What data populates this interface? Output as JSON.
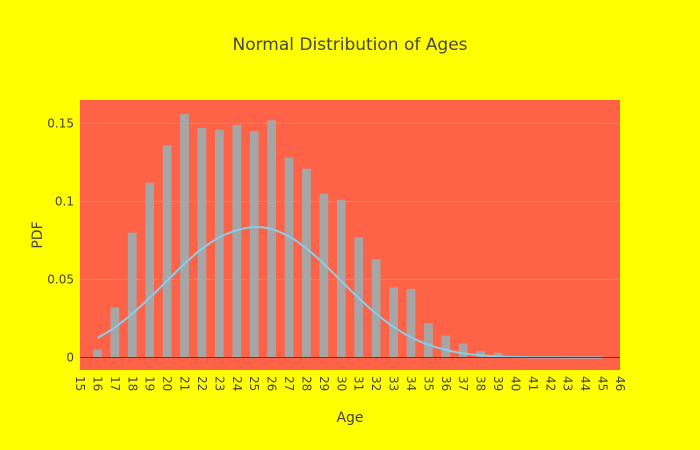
{
  "chart_data": {
    "type": "bar",
    "title": "Normal Distribution of Ages",
    "xlabel": "Age",
    "ylabel": "PDF",
    "xlim": [
      15,
      46
    ],
    "ylim": [
      -0.008,
      0.165
    ],
    "x_ticks": [
      15,
      16,
      17,
      18,
      19,
      20,
      21,
      22,
      23,
      24,
      25,
      26,
      27,
      28,
      29,
      30,
      31,
      32,
      33,
      34,
      35,
      36,
      37,
      38,
      39,
      40,
      41,
      42,
      43,
      44,
      45,
      46
    ],
    "y_ticks": [
      0,
      0.05,
      0.1,
      0.15
    ],
    "y_tick_labels": [
      "0",
      "0.05",
      "0.1",
      "0.15"
    ],
    "grid": true,
    "series": [
      {
        "type": "bar",
        "x": [
          16,
          17,
          18,
          19,
          20,
          21,
          22,
          23,
          24,
          25,
          26,
          27,
          28,
          29,
          30,
          31,
          32,
          33,
          34,
          35,
          36,
          37,
          38,
          39,
          40,
          41,
          42,
          43,
          44,
          45
        ],
        "values": [
          0.005,
          0.032,
          0.08,
          0.112,
          0.136,
          0.156,
          0.147,
          0.146,
          0.149,
          0.145,
          0.152,
          0.128,
          0.121,
          0.105,
          0.101,
          0.077,
          0.063,
          0.045,
          0.044,
          0.022,
          0.014,
          0.009,
          0.004,
          0.003,
          0.001,
          0.0005,
          0.0003,
          0.0002,
          0.0001,
          0.0001
        ],
        "color": "#a6a6a6"
      },
      {
        "type": "line",
        "x": [
          16,
          17,
          18,
          19,
          20,
          21,
          22,
          23,
          24,
          25,
          26,
          27,
          28,
          29,
          30,
          31,
          32,
          33,
          34,
          35,
          36,
          37,
          38,
          39,
          40,
          41,
          42,
          43,
          44,
          45
        ],
        "values": [
          0.0124,
          0.0193,
          0.0281,
          0.0383,
          0.0492,
          0.0601,
          0.0697,
          0.077,
          0.0815,
          0.0836,
          0.0823,
          0.0775,
          0.0699,
          0.06,
          0.049,
          0.0381,
          0.0281,
          0.0196,
          0.013,
          0.0082,
          0.0049,
          0.0027,
          0.0014,
          0.0007,
          0.0003,
          0.0001,
          0.0001,
          0.0,
          0.0,
          0.0
        ],
        "color": "#87ceeb"
      }
    ],
    "colors": {
      "page_background": "#ffff00",
      "plot_background": "#ff6347",
      "text": "#444444"
    }
  }
}
